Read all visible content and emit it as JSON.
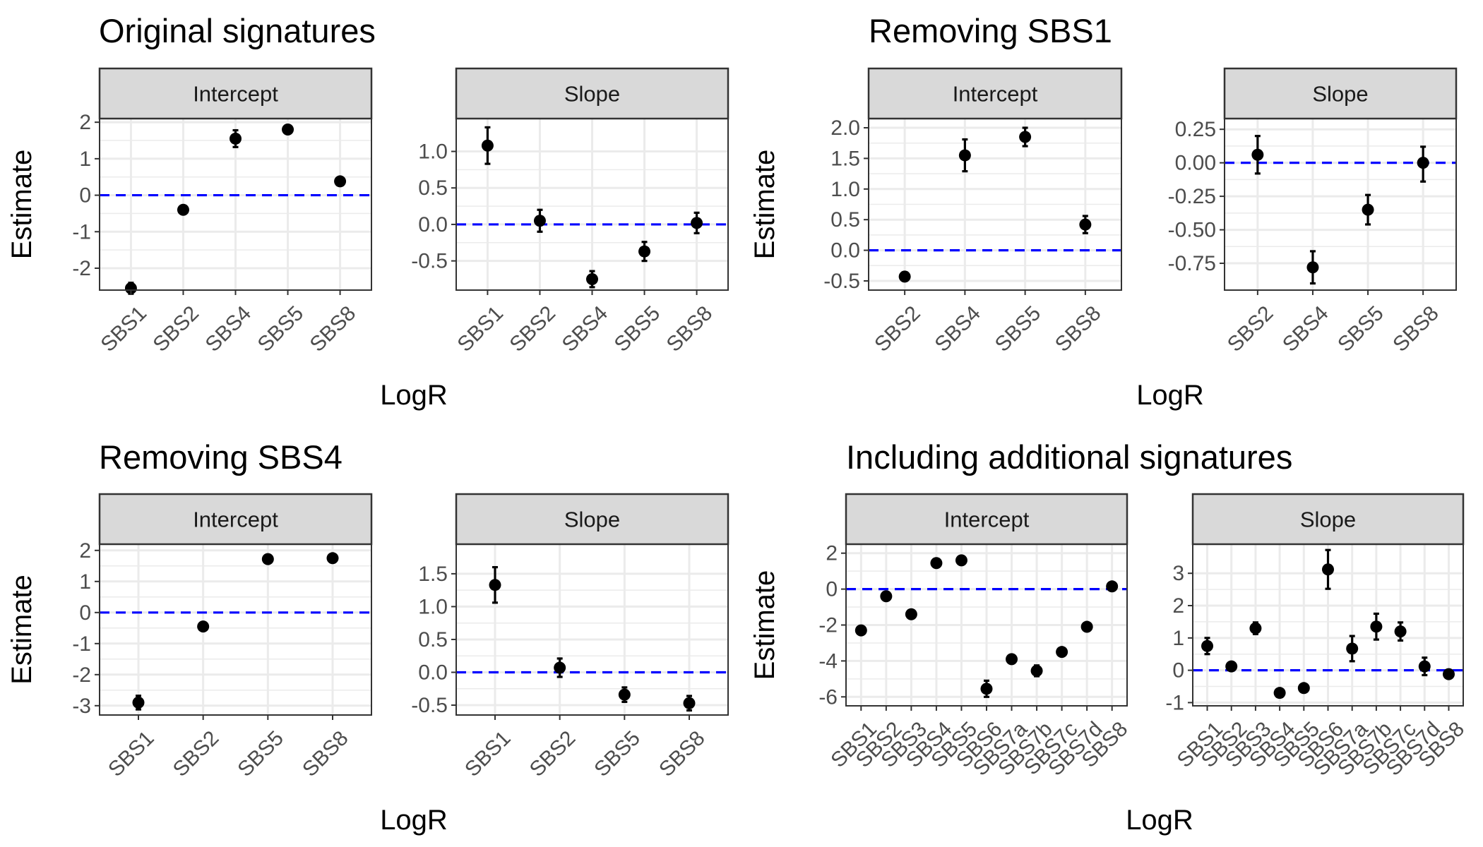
{
  "figure": {
    "ylabel": "Estimate",
    "xlabel": "LogR",
    "panels_labels": [
      "Intercept",
      "Slope"
    ],
    "colors": {
      "reference_line": "#0000ff",
      "point": "#000000",
      "strip_fill": "#d9d9d9",
      "grid": "#ebebeb",
      "border": "#333333"
    }
  },
  "chart_data": [
    {
      "type": "scatter",
      "title": "Original signatures",
      "xlabel": "LogR",
      "ylabel": "Estimate",
      "categories": [
        "SBS1",
        "SBS2",
        "SBS4",
        "SBS5",
        "SBS8"
      ],
      "facets": [
        {
          "label": "Intercept",
          "ylim": [
            -2.6,
            2.1
          ],
          "yticks": [
            -2,
            -1,
            0,
            1,
            2
          ],
          "yticklabels": [
            "-2",
            "-1",
            "0",
            "1",
            "2"
          ],
          "values": [
            -2.55,
            -0.4,
            1.55,
            1.8,
            0.38
          ],
          "lower": [
            -2.7,
            -0.48,
            1.32,
            1.7,
            0.3
          ],
          "upper": [
            -2.4,
            -0.32,
            1.78,
            1.9,
            0.46
          ],
          "reference_line": 0
        },
        {
          "label": "Slope",
          "ylim": [
            -0.9,
            1.45
          ],
          "yticks": [
            -0.5,
            0.0,
            0.5,
            1.0
          ],
          "yticklabels": [
            "-0.5",
            "0.0",
            "0.5",
            "1.0"
          ],
          "values": [
            1.08,
            0.05,
            -0.75,
            -0.37,
            0.02
          ],
          "lower": [
            0.83,
            -0.1,
            -0.86,
            -0.5,
            -0.12
          ],
          "upper": [
            1.33,
            0.2,
            -0.64,
            -0.24,
            0.16
          ],
          "reference_line": 0
        }
      ]
    },
    {
      "type": "scatter",
      "title": "Removing SBS1",
      "xlabel": "LogR",
      "ylabel": "Estimate",
      "categories": [
        "SBS2",
        "SBS4",
        "SBS5",
        "SBS8"
      ],
      "facets": [
        {
          "label": "Intercept",
          "ylim": [
            -0.65,
            2.15
          ],
          "yticks": [
            -0.5,
            0.0,
            0.5,
            1.0,
            1.5,
            2.0
          ],
          "yticklabels": [
            "-0.5",
            "0.0",
            "0.5",
            "1.0",
            "1.5",
            "2.0"
          ],
          "values": [
            -0.43,
            1.55,
            1.85,
            0.42
          ],
          "lower": [
            -0.5,
            1.29,
            1.7,
            0.28
          ],
          "upper": [
            -0.36,
            1.81,
            2.0,
            0.56
          ],
          "reference_line": 0
        },
        {
          "label": "Slope",
          "ylim": [
            -0.95,
            0.33
          ],
          "yticks": [
            -0.75,
            -0.5,
            -0.25,
            0.0,
            0.25
          ],
          "yticklabels": [
            "-0.75",
            "-0.50",
            "-0.25",
            "0.00",
            "0.25"
          ],
          "values": [
            0.06,
            -0.78,
            -0.35,
            0.0
          ],
          "lower": [
            -0.08,
            -0.9,
            -0.46,
            -0.14
          ],
          "upper": [
            0.2,
            -0.66,
            -0.24,
            0.12
          ],
          "reference_line": 0
        }
      ]
    },
    {
      "type": "scatter",
      "title": "Removing SBS4",
      "xlabel": "LogR",
      "ylabel": "Estimate",
      "categories": [
        "SBS1",
        "SBS2",
        "SBS5",
        "SBS8"
      ],
      "facets": [
        {
          "label": "Intercept",
          "ylim": [
            -3.3,
            2.2
          ],
          "yticks": [
            -3,
            -2,
            -1,
            0,
            1,
            2
          ],
          "yticklabels": [
            "-3",
            "-2",
            "-1",
            "0",
            "1",
            "2"
          ],
          "values": [
            -2.9,
            -0.45,
            1.72,
            1.75
          ],
          "lower": [
            -3.12,
            -0.55,
            1.62,
            1.62
          ],
          "upper": [
            -2.68,
            -0.35,
            1.82,
            1.88
          ],
          "reference_line": 0
        },
        {
          "label": "Slope",
          "ylim": [
            -0.65,
            1.95
          ],
          "yticks": [
            -0.5,
            0.0,
            0.5,
            1.0,
            1.5
          ],
          "yticklabels": [
            "-0.5",
            "0.0",
            "0.5",
            "1.0",
            "1.5"
          ],
          "values": [
            1.33,
            0.07,
            -0.34,
            -0.47
          ],
          "lower": [
            1.06,
            -0.07,
            -0.45,
            -0.58
          ],
          "upper": [
            1.6,
            0.21,
            -0.23,
            -0.36
          ],
          "reference_line": 0
        }
      ]
    },
    {
      "type": "scatter",
      "title": "Including additional signatures",
      "xlabel": "LogR",
      "ylabel": "Estimate",
      "categories": [
        "SBS1",
        "SBS2",
        "SBS3",
        "SBS4",
        "SBS5",
        "SBS6",
        "SBS7a",
        "SBS7b",
        "SBS7c",
        "SBS7d",
        "SBS8"
      ],
      "facets": [
        {
          "label": "Intercept",
          "ylim": [
            -6.5,
            2.5
          ],
          "yticks": [
            -6,
            -4,
            -2,
            0,
            2
          ],
          "yticklabels": [
            "-6",
            "-4",
            "-2",
            "0",
            "2"
          ],
          "values": [
            -2.3,
            -0.4,
            -1.4,
            1.45,
            1.6,
            -5.55,
            -3.9,
            -4.55,
            -3.5,
            -2.1,
            0.15
          ],
          "lower": [
            -2.45,
            -0.55,
            -1.55,
            1.3,
            1.45,
            -6.0,
            -4.1,
            -4.85,
            -3.65,
            -2.25,
            0.0
          ],
          "upper": [
            -2.15,
            -0.25,
            -1.25,
            1.6,
            1.75,
            -5.1,
            -3.7,
            -4.25,
            -3.35,
            -1.95,
            0.3
          ],
          "reference_line": 0
        },
        {
          "label": "Slope",
          "ylim": [
            -1.1,
            3.9
          ],
          "yticks": [
            -1,
            0,
            1,
            2,
            3
          ],
          "yticklabels": [
            "-1",
            "0",
            "1",
            "2",
            "3"
          ],
          "values": [
            0.75,
            0.12,
            1.3,
            -0.7,
            -0.55,
            3.12,
            0.67,
            1.35,
            1.2,
            0.12,
            -0.12
          ],
          "lower": [
            0.5,
            0.0,
            1.12,
            -0.82,
            -0.67,
            2.52,
            0.28,
            0.95,
            0.92,
            -0.15,
            -0.24
          ],
          "upper": [
            1.0,
            0.24,
            1.48,
            -0.58,
            -0.43,
            3.72,
            1.06,
            1.75,
            1.48,
            0.39,
            0.0
          ],
          "reference_line": 0
        }
      ]
    }
  ]
}
